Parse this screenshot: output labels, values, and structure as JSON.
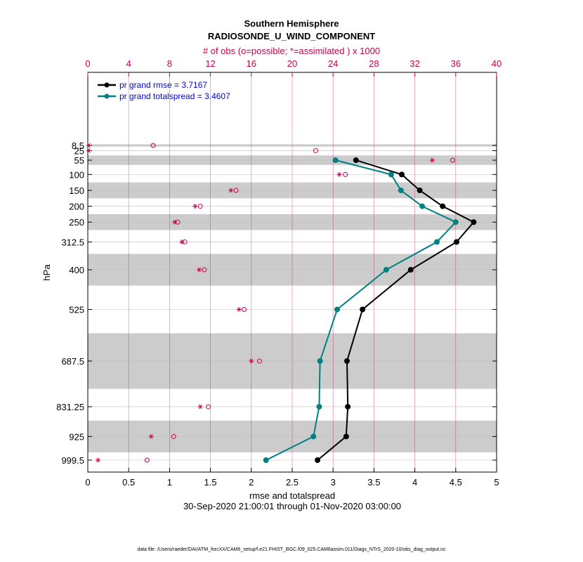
{
  "chart_data": {
    "type": "line",
    "title": "Southern Hemisphere",
    "subtitle": "RADIOSONDE_U_WIND_COMPONENT",
    "top_axis_label": "# of obs (o=possible;  *=assimilated ) x 1000",
    "xlabel": "rmse and totalspread",
    "ylabel": "hPa",
    "date_range": "30-Sep-2020 21:00:01 through 01-Nov-2020 03:00:00",
    "footnote": "data file: /Users/raeder/DAI/ATM_forcXX/CAM6_setup/f.e21.FHIST_BGC.f09_025.CAM6assim.011/Diags_NTrS_2020-10/obs_diag_output.nc",
    "xlim": [
      0,
      5
    ],
    "xticks": [
      "0",
      "0.5",
      "1",
      "1.5",
      "2",
      "2.5",
      "3",
      "3.5",
      "4",
      "4.5",
      "5"
    ],
    "xticks_top": [
      "0",
      "4",
      "8",
      "12",
      "16",
      "20",
      "24",
      "28",
      "32",
      "36",
      "40"
    ],
    "top_xlim": [
      0,
      40
    ],
    "levels": [
      "8.5",
      "25",
      "55",
      "100",
      "150",
      "200",
      "250",
      "312.5",
      "400",
      "525",
      "687.5",
      "831.25",
      "925",
      "999.5"
    ],
    "level_values": [
      8.5,
      25,
      55,
      100,
      150,
      200,
      250,
      312.5,
      400,
      525,
      687.5,
      831.25,
      925,
      999.5
    ],
    "band_edges": [
      5,
      12,
      40,
      70,
      125,
      175,
      225,
      275,
      350,
      450,
      600,
      775,
      875,
      975,
      1025
    ],
    "series": [
      {
        "name": "pr grand rmse = 3.7167",
        "color": "#000000",
        "levels": [
          55,
          100,
          150,
          200,
          250,
          312.5,
          400,
          525,
          687.5,
          831.25,
          925,
          999.5
        ],
        "values": [
          3.28,
          3.84,
          4.06,
          4.34,
          4.72,
          4.51,
          3.95,
          3.36,
          3.17,
          3.18,
          3.16,
          2.81
        ]
      },
      {
        "name": "pr grand totalspread = 3.4607",
        "color": "#008080",
        "levels": [
          55,
          100,
          150,
          200,
          250,
          312.5,
          400,
          525,
          687.5,
          831.25,
          925,
          999.5
        ],
        "values": [
          3.03,
          3.71,
          3.83,
          4.09,
          4.5,
          4.27,
          3.65,
          3.05,
          2.84,
          2.83,
          2.76,
          2.18
        ]
      }
    ],
    "obs_possible": {
      "levels": [
        8.5,
        25,
        55,
        100,
        150,
        200,
        250,
        312.5,
        400,
        525,
        687.5,
        831.25,
        925,
        999.5
      ],
      "values": [
        6.4,
        22.3,
        35.7,
        25.2,
        14.5,
        11.0,
        8.8,
        9.5,
        11.4,
        15.3,
        16.8,
        11.8,
        8.4,
        5.8
      ]
    },
    "obs_assimilated": {
      "levels": [
        8.5,
        25,
        55,
        100,
        150,
        200,
        250,
        312.5,
        400,
        525,
        687.5,
        831.25,
        925,
        999.5
      ],
      "values": [
        0.1,
        0.1,
        33.7,
        24.6,
        14.0,
        10.5,
        8.5,
        9.2,
        10.9,
        14.8,
        16.0,
        11.0,
        6.2,
        1.0
      ]
    },
    "colors": {
      "accent": "#c8004a",
      "band": "#cccccc",
      "rmse": "#000000",
      "spread": "#008080",
      "legend_text": "#0000ee"
    }
  }
}
